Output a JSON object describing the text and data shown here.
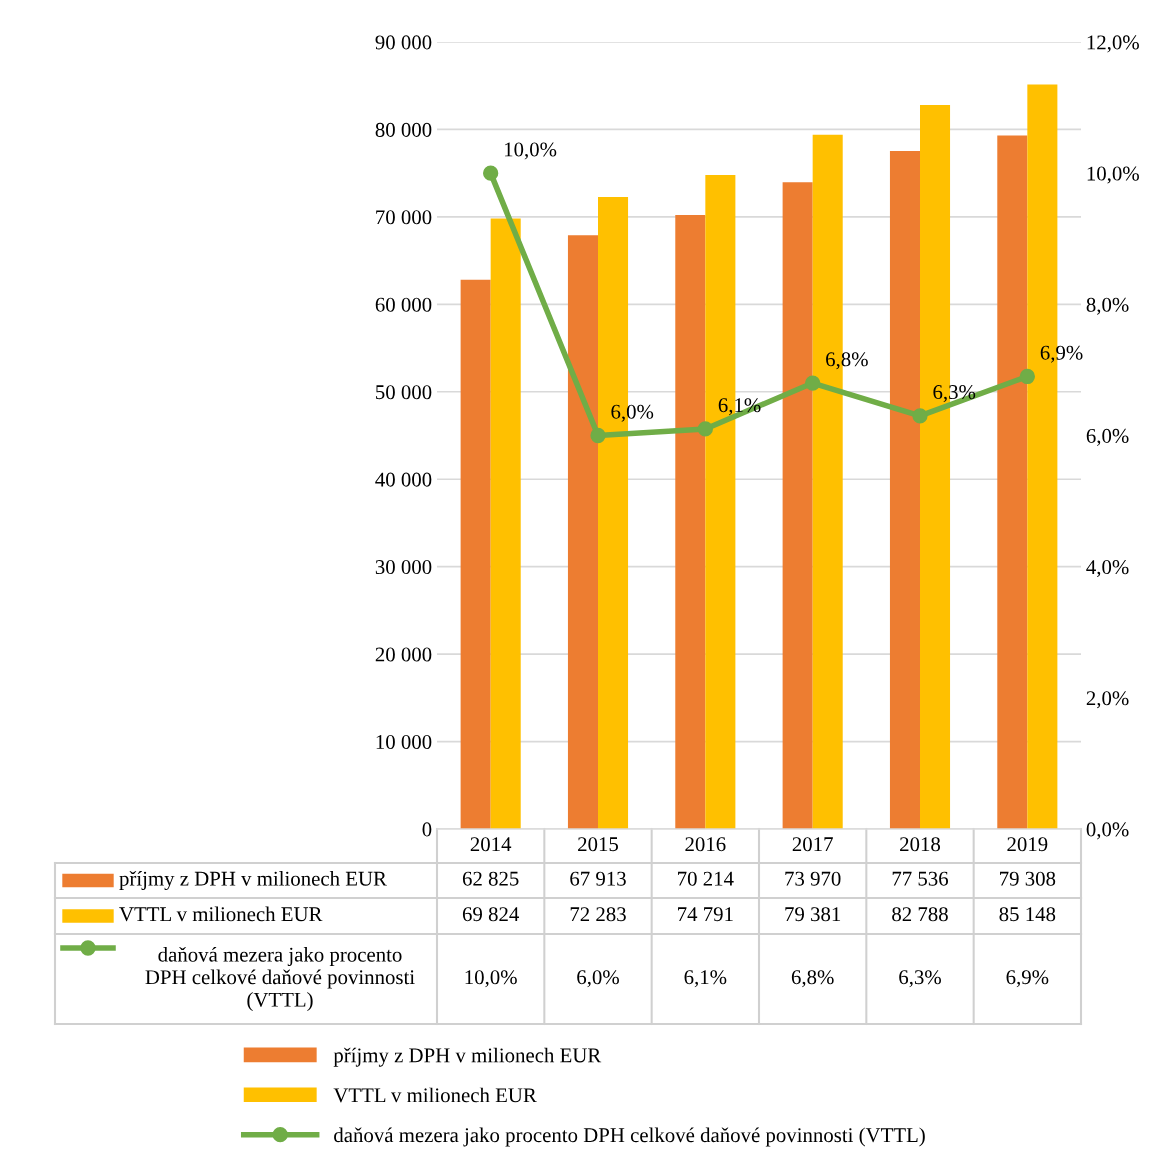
{
  "chart_data": {
    "type": "bar",
    "categories": [
      "2014",
      "2015",
      "2016",
      "2017",
      "2018",
      "2019"
    ],
    "series": [
      {
        "name": "příjmy z DPH v milionech EUR",
        "color": "#ed7d31",
        "values": [
          62825,
          67913,
          70214,
          73970,
          77536,
          79308
        ],
        "value_labels": [
          "62 825",
          "67 913",
          "70 214",
          "73 970",
          "77 536",
          "79 308"
        ]
      },
      {
        "name": "VTTL v milionech EUR",
        "color": "#ffc000",
        "values": [
          69824,
          72283,
          74791,
          79381,
          82788,
          85148
        ],
        "value_labels": [
          "69 824",
          "72 283",
          "74 791",
          "79 381",
          "82 788",
          "85 148"
        ]
      },
      {
        "name": "daňová mezera jako procento DPH celkové daňové povinnosti (VTTL)",
        "type": "line",
        "axis": "y2",
        "color": "#70ad47",
        "marker": "circle",
        "values": [
          10.0,
          6.0,
          6.1,
          6.8,
          6.3,
          6.9
        ],
        "value_labels": [
          "10,0%",
          "6,0%",
          "6,1%",
          "6,8%",
          "6,3%",
          "6,9%"
        ]
      }
    ],
    "ylim": [
      0,
      90000
    ],
    "yticks": [
      {
        "value": 0,
        "label": "0"
      },
      {
        "value": 10000,
        "label": "10 000"
      },
      {
        "value": 20000,
        "label": "20 000"
      },
      {
        "value": 30000,
        "label": "30 000"
      },
      {
        "value": 40000,
        "label": "40 000"
      },
      {
        "value": 50000,
        "label": "50 000"
      },
      {
        "value": 60000,
        "label": "60 000"
      },
      {
        "value": 70000,
        "label": "70 000"
      },
      {
        "value": 80000,
        "label": "80 000"
      },
      {
        "value": 90000,
        "label": "90 000"
      }
    ],
    "y2lim": [
      0,
      12
    ],
    "y2ticks": [
      {
        "value": 0,
        "label": "0,0%"
      },
      {
        "value": 2,
        "label": "2,0%"
      },
      {
        "value": 4,
        "label": "4,0%"
      },
      {
        "value": 6,
        "label": "6,0%"
      },
      {
        "value": 8,
        "label": "8,0%"
      },
      {
        "value": 10,
        "label": "10,0%"
      },
      {
        "value": 12,
        "label": "12,0%"
      }
    ],
    "grid": "y",
    "legend": "bottom"
  }
}
